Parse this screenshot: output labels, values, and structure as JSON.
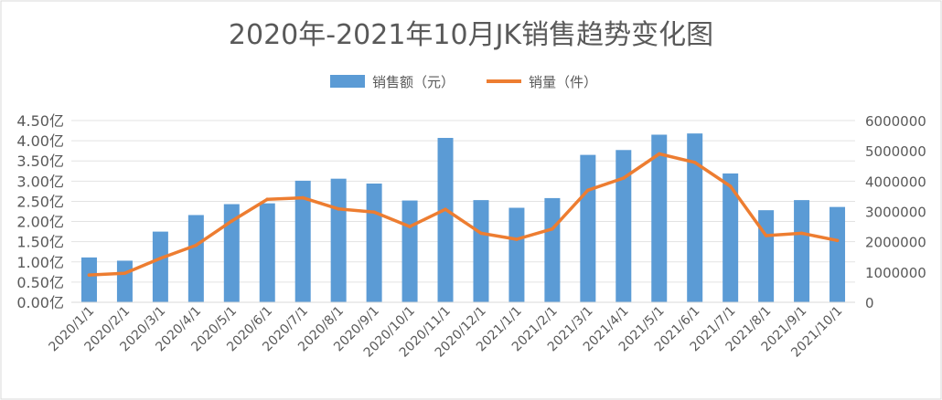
{
  "chart_data": {
    "type": "bar+line",
    "title": "2020年-2021年10月JK销售趋势变化图",
    "categories": [
      "2020/1/1",
      "2020/2/1",
      "2020/3/1",
      "2020/4/1",
      "2020/5/1",
      "2020/6/1",
      "2020/7/1",
      "2020/8/1",
      "2020/9/1",
      "2020/10/1",
      "2020/11/1",
      "2020/12/1",
      "2021/1/1",
      "2021/2/1",
      "2021/3/1",
      "2021/4/1",
      "2021/5/1",
      "2021/6/1",
      "2021/7/1",
      "2021/8/1",
      "2021/9/1",
      "2021/10/1"
    ],
    "series": [
      {
        "name": "销售额（元）",
        "type": "bar",
        "axis": "left",
        "color": "#5B9BD5",
        "values": [
          1.11,
          1.03,
          1.75,
          2.16,
          2.43,
          2.45,
          3.01,
          3.06,
          2.94,
          2.52,
          4.07,
          2.53,
          2.34,
          2.58,
          3.65,
          3.77,
          4.15,
          4.18,
          3.19,
          2.28,
          2.53,
          2.36
        ]
      },
      {
        "name": "销量（件）",
        "type": "line",
        "axis": "right",
        "color": "#ED7D31",
        "values": [
          900000,
          960000,
          1450000,
          1880000,
          2680000,
          3400000,
          3450000,
          3080000,
          2980000,
          2500000,
          3070000,
          2280000,
          2080000,
          2420000,
          3700000,
          4100000,
          4900000,
          4620000,
          3830000,
          2200000,
          2280000,
          2040000
        ]
      }
    ],
    "left_axis": {
      "ylim": [
        0,
        4.5
      ],
      "step": 0.5,
      "tick_labels": [
        "0.00亿",
        "0.50亿",
        "1.00亿",
        "1.50亿",
        "2.00亿",
        "2.50亿",
        "3.00亿",
        "3.50亿",
        "4.00亿",
        "4.50亿"
      ]
    },
    "right_axis": {
      "ylim": [
        0,
        6000000
      ],
      "step": 1000000,
      "tick_labels": [
        "0",
        "1000000",
        "2000000",
        "3000000",
        "4000000",
        "5000000",
        "6000000"
      ]
    },
    "grid": true,
    "legend_position": "top-center"
  }
}
